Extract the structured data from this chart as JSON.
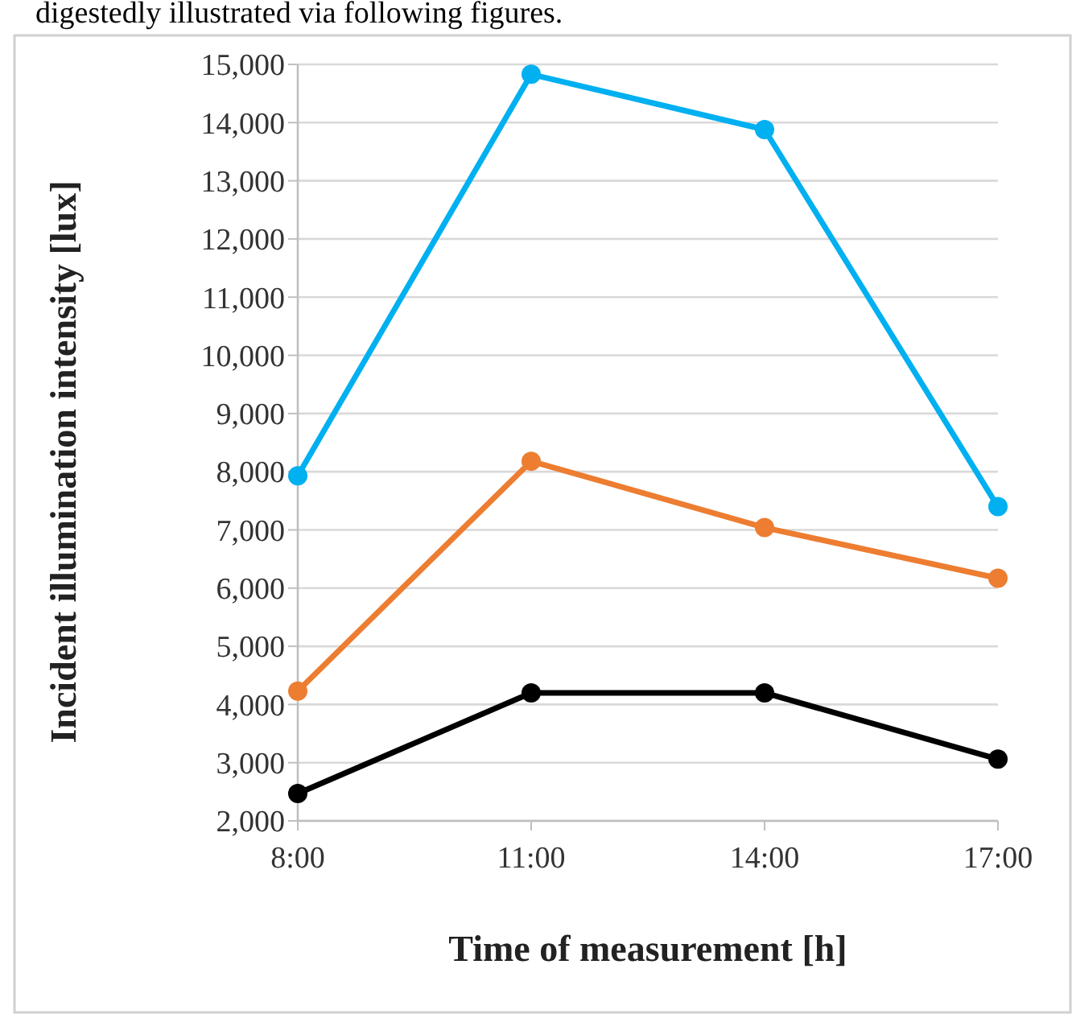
{
  "chart_data": {
    "type": "line",
    "xlabel": "Time of measurement [h]",
    "ylabel": "Incident illumination intensity [lux]",
    "annotations": [
      "digestedly illustrated via following figures."
    ],
    "categories": [
      "8:00",
      "11:00",
      "14:00",
      "17:00"
    ],
    "series": [
      {
        "color": "#00b0f0",
        "values": [
          7930,
          14830,
          13880,
          7400
        ]
      },
      {
        "color": "#ed7d31",
        "values": [
          4230,
          8180,
          7040,
          6170
        ]
      },
      {
        "color": "#000000",
        "values": [
          2470,
          4200,
          4200,
          3060
        ]
      }
    ],
    "ylim": [
      2000,
      15000
    ],
    "yticks": [
      {
        "value": 2000,
        "label": "2,000"
      },
      {
        "value": 3000,
        "label": "3,000"
      },
      {
        "value": 4000,
        "label": "4,000"
      },
      {
        "value": 5000,
        "label": "5,000"
      },
      {
        "value": 6000,
        "label": "6,000"
      },
      {
        "value": 7000,
        "label": "7,000"
      },
      {
        "value": 8000,
        "label": "8,000"
      },
      {
        "value": 9000,
        "label": "9,000"
      },
      {
        "value": 10000,
        "label": "10,000"
      },
      {
        "value": 11000,
        "label": "11,000"
      },
      {
        "value": 12000,
        "label": "12,000"
      },
      {
        "value": 13000,
        "label": "13,000"
      },
      {
        "value": 14000,
        "label": "14,000"
      },
      {
        "value": 15000,
        "label": "15,000"
      }
    ],
    "grid": "y",
    "marker": "circle",
    "line_style": "solid"
  }
}
